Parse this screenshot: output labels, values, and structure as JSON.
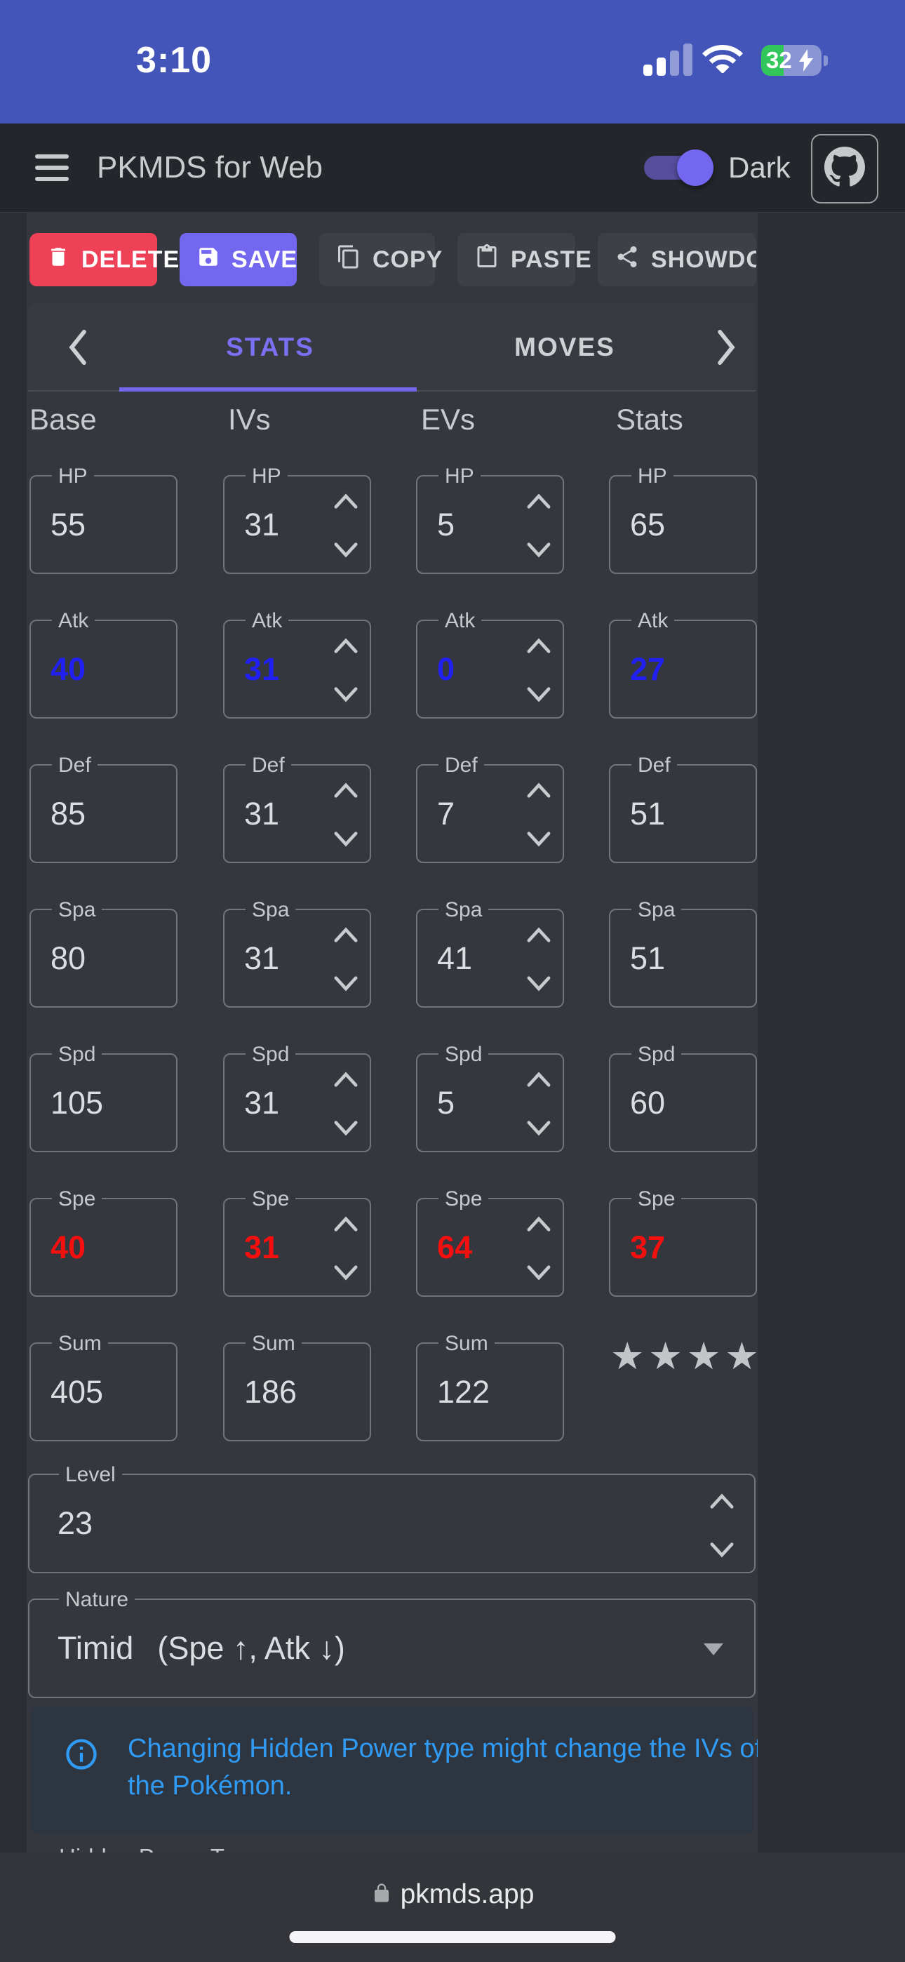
{
  "status_bar": {
    "time": "3:10",
    "battery_percent": "32"
  },
  "app_bar": {
    "title": "PKMDS for Web",
    "theme_toggle_label": "Dark"
  },
  "toolbar": {
    "delete_label": "DELETE",
    "save_label": "SAVE",
    "copy_label": "COPY",
    "paste_label": "PASTE",
    "showdown_label": "SHOWDOWN"
  },
  "tabs": {
    "stats_label": "STATS",
    "moves_label": "MOVES",
    "active": "STATS"
  },
  "stats": {
    "columns": [
      "Base",
      "IVs",
      "EVs",
      "Stats"
    ],
    "rows": [
      {
        "label": "HP",
        "base": "55",
        "iv": "31",
        "ev": "5",
        "stat": "65",
        "tone": "normal"
      },
      {
        "label": "Atk",
        "base": "40",
        "iv": "31",
        "ev": "0",
        "stat": "27",
        "tone": "lowered"
      },
      {
        "label": "Def",
        "base": "85",
        "iv": "31",
        "ev": "7",
        "stat": "51",
        "tone": "normal"
      },
      {
        "label": "Spa",
        "base": "80",
        "iv": "31",
        "ev": "41",
        "stat": "51",
        "tone": "normal"
      },
      {
        "label": "Spd",
        "base": "105",
        "iv": "31",
        "ev": "5",
        "stat": "60",
        "tone": "normal"
      },
      {
        "label": "Spe",
        "base": "40",
        "iv": "31",
        "ev": "64",
        "stat": "37",
        "tone": "raised"
      }
    ],
    "sum": {
      "label": "Sum",
      "base": "405",
      "iv": "186",
      "ev": "122"
    },
    "iv_rating_stars": "★★★★"
  },
  "level": {
    "label": "Level",
    "value": "23"
  },
  "nature": {
    "label": "Nature",
    "value": "Timid",
    "effect": "(Spe ↑, Atk ↓)"
  },
  "alert": {
    "message": "Changing Hidden Power type might change the IVs of the Pokémon."
  },
  "hidden_power": {
    "label": "Hidden Power Type"
  },
  "browser": {
    "url": "pkmds.app"
  },
  "colors": {
    "accent": "#7367f0",
    "delete_red": "#ee4056",
    "stat_raised": "#f50f0f",
    "stat_lowered": "#2020f2",
    "alert_text": "#2f9bf5",
    "battery_green": "#32c75a",
    "status_bar_blue": "#4355b8"
  }
}
